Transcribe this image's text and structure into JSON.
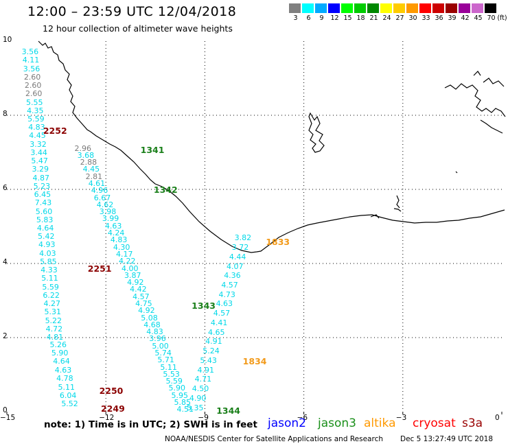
{
  "header": {
    "title": "12:00 – 23:59 UTC 12/04/2018",
    "subtitle": "12 hour collection of altimeter wave heights"
  },
  "scale": {
    "unit_label": "(ft)",
    "bins": [
      {
        "label": "3",
        "color": "#808080"
      },
      {
        "label": "6",
        "color": "#00ffff"
      },
      {
        "label": "9",
        "color": "#00aaff"
      },
      {
        "label": "12",
        "color": "#0000ff"
      },
      {
        "label": "15",
        "color": "#00ff00"
      },
      {
        "label": "18",
        "color": "#00cc00"
      },
      {
        "label": "21",
        "color": "#008800"
      },
      {
        "label": "24",
        "color": "#ffff00"
      },
      {
        "label": "27",
        "color": "#ffcc00"
      },
      {
        "label": "30",
        "color": "#ff9900"
      },
      {
        "label": "33",
        "color": "#ff0000"
      },
      {
        "label": "36",
        "color": "#cc0000"
      },
      {
        "label": "39",
        "color": "#990000"
      },
      {
        "label": "42",
        "color": "#990099"
      },
      {
        "label": "45",
        "color": "#cc66cc"
      },
      {
        "label": "70",
        "color": "#000000"
      }
    ]
  },
  "map": {
    "lon_range": [
      -15,
      0
    ],
    "lat_range": [
      0,
      10
    ],
    "x_ticks": [
      "−15",
      "−12",
      "−9",
      "−6",
      "−3",
      "0"
    ],
    "y_ticks": [
      "10",
      "8",
      "6",
      "4",
      "2",
      "0"
    ],
    "colors": {
      "cyan": "#00d8e8",
      "gray": "#7a7a7a",
      "jason3": "#1a7f1a",
      "altika": "#f29a1a",
      "cryosat": "#8b0000"
    }
  },
  "tracks": [
    {
      "name": "cryosat-2252-2251",
      "color": "cyan",
      "start_lon": -14.3,
      "start_lat": 9.7,
      "end_lon": -13.55,
      "end_lat": 2.0,
      "values": [
        "3.56",
        "4.11",
        "3.56",
        "2.60",
        "2.60",
        "2.60",
        "5.55",
        "4.35",
        "5.59",
        "4.83",
        "4.45",
        "3.32",
        "3.44",
        "5.47",
        "3.29",
        "4.87",
        "5.23",
        "6.45",
        "7.43",
        "5.60",
        "5.83",
        "4.64",
        "5.42",
        "4.93",
        "4.03",
        "5.85",
        "4.33",
        "5.11",
        "5.59",
        "6.22",
        "4.27",
        "5.31",
        "5.22",
        "4.72",
        "4.81"
      ],
      "gray_indices": [
        3,
        4,
        5
      ]
    },
    {
      "name": "cryosat-2250-2249",
      "color": "cyan",
      "start_lon": -13.45,
      "start_lat": 1.8,
      "end_lon": -13.1,
      "end_lat": 0.2,
      "values": [
        "5.26",
        "5.90",
        "4.64",
        "4.63",
        "4.78",
        "5.11",
        "6.04",
        "5.52"
      ],
      "gray_indices": []
    },
    {
      "name": "jason3-1341-1343",
      "color": "cyan",
      "start_lon": -12.7,
      "start_lat": 7.1,
      "end_lon": -9.6,
      "end_lat": 0.05,
      "values": [
        "2.96",
        "3.68",
        "2.88",
        "4.45",
        "2.81",
        "4.61",
        "4.96",
        "6.67",
        "4.62",
        "3.98",
        "3.99",
        "4.63",
        "4.24",
        "4.83",
        "4.30",
        "4.17",
        "4.22",
        "4.00",
        "3.87",
        "4.92",
        "4.42",
        "4.57",
        "4.75",
        "4.92",
        "5.08",
        "4.68",
        "4.83",
        "3.96",
        "5.00",
        "5.74",
        "5.71",
        "5.11",
        "5.53",
        "5.59",
        "5.90",
        "5.95",
        "5.85",
        "4.51"
      ],
      "gray_indices": [
        0,
        2,
        4
      ]
    },
    {
      "name": "altika-1833-1834",
      "color": "cyan",
      "start_lon": -7.85,
      "start_lat": 4.68,
      "end_lon": -9.3,
      "end_lat": 0.1,
      "values": [
        "3.82",
        "3.72",
        "4.44",
        "4.07",
        "4.36",
        "4.57",
        "4.73",
        "4.63",
        "4.57",
        "4.41",
        "4.65",
        "4.91",
        "5.24",
        "5.43",
        "4.91",
        "4.71",
        "4.50",
        "4.90",
        "5.35"
      ],
      "gray_indices": []
    }
  ],
  "time_labels": [
    {
      "text": "2252",
      "lon": -13.9,
      "lat": 7.57,
      "color": "cryosat"
    },
    {
      "text": "1341",
      "lon": -10.95,
      "lat": 7.05,
      "color": "jason3"
    },
    {
      "text": "1342",
      "lon": -10.55,
      "lat": 5.98,
      "color": "jason3"
    },
    {
      "text": "1833",
      "lon": -7.15,
      "lat": 4.58,
      "color": "altika"
    },
    {
      "text": "2251",
      "lon": -12.55,
      "lat": 3.85,
      "color": "cryosat"
    },
    {
      "text": "1343",
      "lon": -9.4,
      "lat": 2.85,
      "color": "jason3"
    },
    {
      "text": "1834",
      "lon": -7.85,
      "lat": 1.35,
      "color": "altika"
    },
    {
      "text": "2250",
      "lon": -12.2,
      "lat": 0.55,
      "color": "cryosat"
    },
    {
      "text": "2249",
      "lon": -12.15,
      "lat": 0.07,
      "color": "cryosat"
    },
    {
      "text": "1344",
      "lon": -8.65,
      "lat": 0.02,
      "color": "jason3"
    }
  ],
  "footer": {
    "note": "note:  1) Time is in UTC;  2) SWH is in feet",
    "legend": [
      {
        "label": "jason2",
        "color": "#0000ff"
      },
      {
        "label": "jason3",
        "color": "#1a8f1a"
      },
      {
        "label": "altika",
        "color": "#ff9900"
      },
      {
        "label": "cryosat",
        "color": "#ff0000"
      },
      {
        "label": "s3a",
        "color": "#990000"
      }
    ],
    "credit": "NOAA/NESDIS Center for Satellite Applications and Research",
    "timestamp": "Dec  5 13:27:49 UTC 2018"
  }
}
